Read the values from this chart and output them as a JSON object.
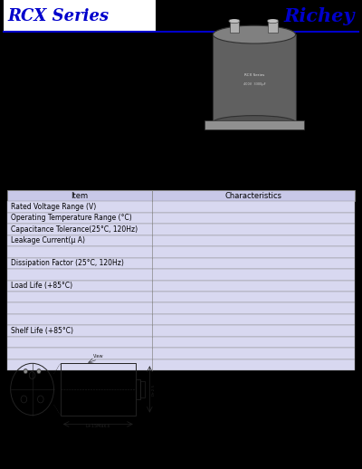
{
  "title_left": "RCX Series",
  "title_right": "Richey",
  "title_color": "#0000cc",
  "title_bg": "#ffffff",
  "separator_color": "#0000cc",
  "bg_color": "#000000",
  "table_header_bg": "#c8c8e8",
  "table_row_bg": "#d8d8f0",
  "table_border_color": "#888888",
  "table_header": [
    "Item",
    "Characteristics"
  ],
  "table_rows": [
    "Rated Voltage Range (V)",
    "Operating Temperature Range (°C)",
    "Capacitance Tolerance(25°C, 120Hz)",
    "Leakage Current(μ A)",
    "",
    "Dissipation Factor (25°C, 120Hz)",
    "",
    "Load Life (+85°C)",
    "",
    "",
    "",
    "Shelf Life (+85°C)",
    "",
    "",
    ""
  ],
  "header_fontsize": 6,
  "row_fontsize": 5.5
}
